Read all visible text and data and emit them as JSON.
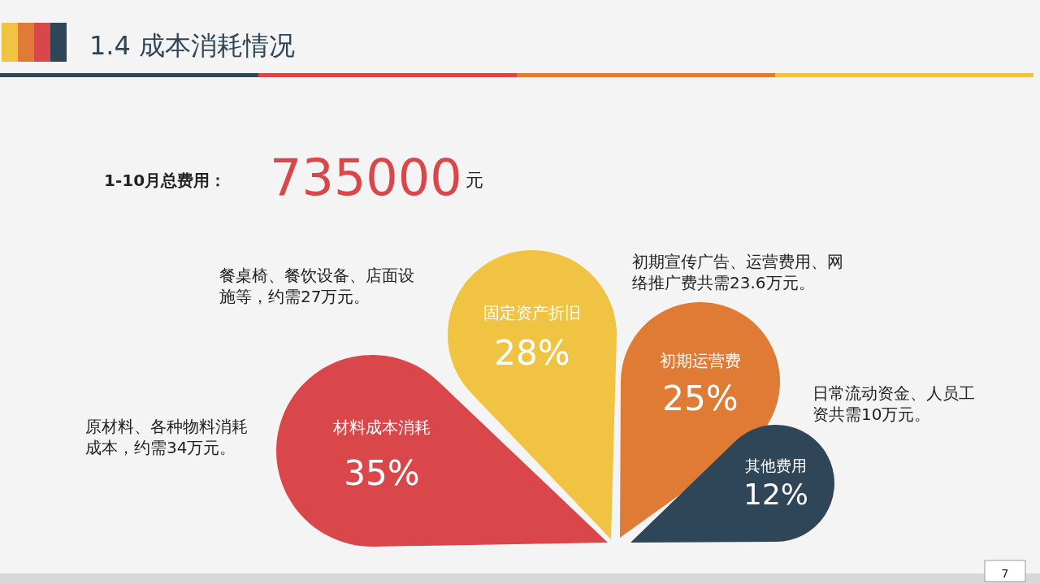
{
  "chart_data": {
    "type": "other",
    "title": "1.4 成本消耗情况",
    "categories": [
      "材料成本消耗",
      "固定资产折旧",
      "初期运营费",
      "其他费用"
    ],
    "values": [
      35,
      28,
      25,
      12
    ],
    "value_labels": [
      "35%",
      "28%",
      "25%",
      "12%"
    ],
    "colors": [
      "#d9474b",
      "#f0c343",
      "#e07b35",
      "#2f4558"
    ],
    "annotations": [
      "1-10月总费用：",
      "735000",
      "元",
      "原材料、各种物料消耗成本，约需34万元。",
      "餐桌椅、餐饮设备、店面设施等，约需27万元。",
      "初期宣传广告、运营费用、网络推广费共需23.6万元。",
      "日常流动资金、人员工资共需10万元。",
      "7"
    ]
  }
}
